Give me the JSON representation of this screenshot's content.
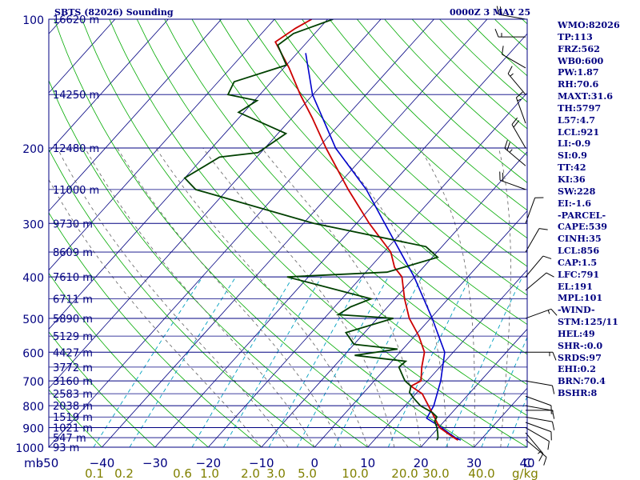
{
  "header": {
    "station": "SBTS (82026) Sounding",
    "run_time": "0000Z  3 MAY 25"
  },
  "indices": [
    "WMO:82026",
    "TP:113",
    "FRZ:562",
    "WB0:600",
    "PW:1.87",
    "RH:70.6",
    "MAXT:31.6",
    "TH:5797",
    "L57:4.7",
    "LCL:921",
    "LI:-0.9",
    "SI:0.9",
    "TT:42",
    "KI:36",
    "SW:228",
    "EI:-1.6",
    "-PARCEL-",
    "CAPE:539",
    "CINH:35",
    "LCL:856",
    "CAP:1.5",
    "LFC:791",
    "EL:191",
    "MPL:101",
    "-WIND-",
    "STM:125/11",
    "HEL:49",
    "SHR-:0.0",
    "SRDS:97",
    "EHI:0.2",
    "BRN:70.4",
    "BSHR:8"
  ],
  "colors": {
    "frame": "#000080",
    "isobar": "#000080",
    "isotherm": "#000080",
    "dry_adiabat": "#00aa00",
    "moist_adiabat": "#606060",
    "mixing_ratio": "#00a0c0",
    "temperature": "#cc0000",
    "dewpoint": "#004000",
    "parcel": "#0000cc",
    "wind_barb": "#000000",
    "pressure_label": "#000080",
    "temp_axis_label": "#000080",
    "mixing_axis_label": "#808000"
  },
  "chart_data": {
    "type": "skew-t log-p",
    "pressure_axis": {
      "unit": "mb",
      "range": [
        1000,
        100
      ],
      "ticks": [
        100,
        200,
        300,
        400,
        500,
        600,
        700,
        800,
        900,
        1000
      ]
    },
    "temperature_axis": {
      "unit": "C",
      "range": [
        -50,
        40
      ],
      "ticks": [
        -50,
        -40,
        -30,
        -20,
        -10,
        0,
        10,
        20,
        30,
        40
      ],
      "tick_labels": [
        "-50",
        "−40",
        "−30",
        "−20",
        "−10",
        "0",
        "10",
        "20",
        "30",
        "40"
      ]
    },
    "mixing_ratio_axis": {
      "unit": "g/kg",
      "ticks": [
        0.1,
        0.2,
        0.6,
        1.0,
        2.0,
        3.0,
        5.0,
        10.0,
        20.0,
        30.0,
        40.0
      ],
      "tick_labels": [
        "0.1",
        "0.2",
        "0.6",
        "1.0",
        "2.0",
        "3.0",
        "5.0",
        "10.0",
        "20.0",
        "30.0",
        "40.0"
      ]
    },
    "heights": [
      {
        "p": 100,
        "label": "16620 m"
      },
      {
        "p": 150,
        "label": "14250 m"
      },
      {
        "p": 200,
        "label": "12480 m"
      },
      {
        "p": 250,
        "label": "11000 m"
      },
      {
        "p": 300,
        "label": "9730 m"
      },
      {
        "p": 350,
        "label": "8609 m"
      },
      {
        "p": 400,
        "label": "7610 m"
      },
      {
        "p": 450,
        "label": "6711 m"
      },
      {
        "p": 500,
        "label": "5890 m"
      },
      {
        "p": 550,
        "label": "5129 m"
      },
      {
        "p": 600,
        "label": "4427 m"
      },
      {
        "p": 650,
        "label": "3772 m"
      },
      {
        "p": 700,
        "label": "3160 m"
      },
      {
        "p": 750,
        "label": "2583 m"
      },
      {
        "p": 800,
        "label": "2038 m"
      },
      {
        "p": 850,
        "label": "1519 m"
      },
      {
        "p": 900,
        "label": "1021 m"
      },
      {
        "p": 950,
        "label": "547 m"
      },
      {
        "p": 1000,
        "label": "93 m"
      }
    ],
    "temperature_profile": [
      [
        963,
        25.8
      ],
      [
        950,
        24.6
      ],
      [
        925,
        22.4
      ],
      [
        900,
        20.2
      ],
      [
        850,
        17.4
      ],
      [
        800,
        14.4
      ],
      [
        750,
        11.2
      ],
      [
        720,
        7.8
      ],
      [
        700,
        8.8
      ],
      [
        650,
        6.6
      ],
      [
        600,
        4.6
      ],
      [
        550,
        0.8
      ],
      [
        500,
        -4.0
      ],
      [
        450,
        -8.2
      ],
      [
        400,
        -12.4
      ],
      [
        380,
        -15.4
      ],
      [
        350,
        -18.7
      ],
      [
        300,
        -27.6
      ],
      [
        250,
        -37.3
      ],
      [
        200,
        -48.5
      ],
      [
        170,
        -56.2
      ],
      [
        150,
        -62.4
      ],
      [
        130,
        -69.0
      ],
      [
        113,
        -76.0
      ],
      [
        105,
        -74.5
      ],
      [
        100,
        -73.0
      ]
    ],
    "dewpoint_profile": [
      [
        963,
        21.8
      ],
      [
        950,
        21.6
      ],
      [
        925,
        20.7
      ],
      [
        900,
        19.7
      ],
      [
        870,
        18.2
      ],
      [
        850,
        17.9
      ],
      [
        830,
        16.3
      ],
      [
        800,
        12.9
      ],
      [
        770,
        10.5
      ],
      [
        745,
        8.6
      ],
      [
        720,
        7.8
      ],
      [
        700,
        5.8
      ],
      [
        690,
        5.1
      ],
      [
        650,
        2.3
      ],
      [
        630,
        2.6
      ],
      [
        610,
        -8.0
      ],
      [
        590,
        -1.0
      ],
      [
        575,
        -10.0
      ],
      [
        540,
        -13.5
      ],
      [
        500,
        -7.0
      ],
      [
        490,
        -18.0
      ],
      [
        470,
        -17.0
      ],
      [
        450,
        -14.5
      ],
      [
        400,
        -34.0
      ],
      [
        390,
        -16.0
      ],
      [
        360,
        -9.0
      ],
      [
        340,
        -13.0
      ],
      [
        300,
        -38.0
      ],
      [
        250,
        -66.0
      ],
      [
        235,
        -70.0
      ],
      [
        210,
        -67.0
      ],
      [
        205,
        -60.5
      ],
      [
        185,
        -58.5
      ],
      [
        165,
        -71.0
      ],
      [
        155,
        -69.5
      ],
      [
        150,
        -76.0
      ],
      [
        140,
        -77.0
      ],
      [
        128,
        -70.0
      ],
      [
        115,
        -75.0
      ],
      [
        108,
        -74.0
      ],
      [
        100,
        -69.0
      ]
    ],
    "parcel_profile": [
      [
        963,
        26.3
      ],
      [
        950,
        24.9
      ],
      [
        925,
        22.7
      ],
      [
        900,
        20.6
      ],
      [
        856,
        16.2
      ],
      [
        800,
        15.4
      ],
      [
        700,
        12.5
      ],
      [
        600,
        8.4
      ],
      [
        500,
        0.3
      ],
      [
        400,
        -10.1
      ],
      [
        300,
        -24.7
      ],
      [
        250,
        -33.9
      ],
      [
        200,
        -46.7
      ],
      [
        150,
        -60.1
      ],
      [
        120,
        -68.4
      ]
    ],
    "wind_barbs": [
      {
        "p": 960,
        "dir": 130,
        "kt": 10
      },
      {
        "p": 925,
        "dir": 140,
        "kt": 15
      },
      {
        "p": 900,
        "dir": 120,
        "kt": 10
      },
      {
        "p": 875,
        "dir": 110,
        "kt": 10
      },
      {
        "p": 850,
        "dir": 100,
        "kt": 10
      },
      {
        "p": 820,
        "dir": 90,
        "kt": 5
      },
      {
        "p": 800,
        "dir": 100,
        "kt": 10
      },
      {
        "p": 760,
        "dir": 110,
        "kt": 10
      },
      {
        "p": 700,
        "dir": 100,
        "kt": 10
      },
      {
        "p": 600,
        "dir": 90,
        "kt": 15
      },
      {
        "p": 500,
        "dir": 70,
        "kt": 15
      },
      {
        "p": 430,
        "dir": 50,
        "kt": 10
      },
      {
        "p": 400,
        "dir": 40,
        "kt": 10
      },
      {
        "p": 350,
        "dir": 30,
        "kt": 10
      },
      {
        "p": 300,
        "dir": 20,
        "kt": 10
      },
      {
        "p": 250,
        "dir": 290,
        "kt": 20
      },
      {
        "p": 220,
        "dir": 310,
        "kt": 25
      },
      {
        "p": 200,
        "dir": 330,
        "kt": 20
      },
      {
        "p": 175,
        "dir": 340,
        "kt": 15
      },
      {
        "p": 150,
        "dir": 320,
        "kt": 15
      },
      {
        "p": 130,
        "dir": 300,
        "kt": 10
      },
      {
        "p": 110,
        "dir": 270,
        "kt": 15
      },
      {
        "p": 100,
        "dir": 280,
        "kt": 20
      }
    ],
    "xlabel": "",
    "ylabel": "",
    "grid": true
  }
}
